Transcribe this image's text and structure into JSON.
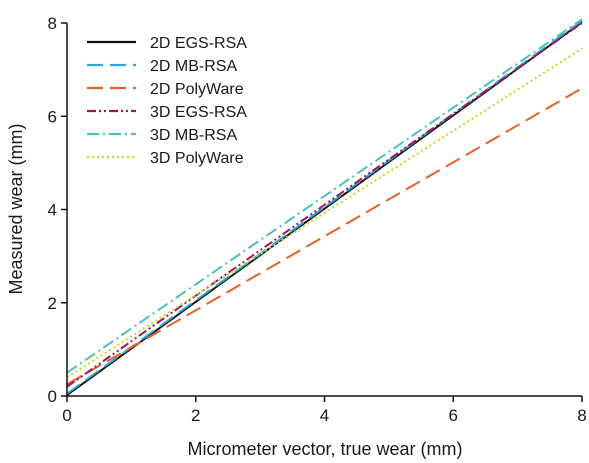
{
  "chart_data": {
    "type": "line",
    "xlabel": "Micrometer vector, true wear (mm)",
    "ylabel": "Measured wear (mm)",
    "xlim": [
      0,
      8
    ],
    "ylim": [
      0,
      8
    ],
    "xticks": [
      "0",
      "2",
      "4",
      "6",
      "8"
    ],
    "yticks": [
      "0",
      "2",
      "4",
      "6",
      "8"
    ],
    "grid": false,
    "legend_position": "top-left",
    "series": [
      {
        "name": "2D EGS-RSA",
        "color": "#111111",
        "dash": "solid",
        "x": [
          0,
          8
        ],
        "y": [
          0.02,
          8.02
        ]
      },
      {
        "name": "2D MB-RSA",
        "color": "#29a8d6",
        "dash": "long-dash",
        "x": [
          0,
          8
        ],
        "y": [
          0.05,
          8.05
        ]
      },
      {
        "name": "2D PolyWare",
        "color": "#e8612c",
        "dash": "long-dash",
        "x": [
          0,
          8
        ],
        "y": [
          0.25,
          6.6
        ]
      },
      {
        "name": "3D EGS-RSA",
        "color": "#a0155f",
        "dash": "dash-dot-dot",
        "x": [
          0,
          8
        ],
        "y": [
          0.2,
          8.0
        ]
      },
      {
        "name": "3D MB-RSA",
        "color": "#4cc1b7",
        "dash": "dash-dot",
        "x": [
          0,
          8
        ],
        "y": [
          0.5,
          8.08
        ]
      },
      {
        "name": "3D PolyWare",
        "color": "#c9d626",
        "dash": "dotted",
        "x": [
          0,
          8
        ],
        "y": [
          0.4,
          7.45
        ]
      }
    ]
  }
}
